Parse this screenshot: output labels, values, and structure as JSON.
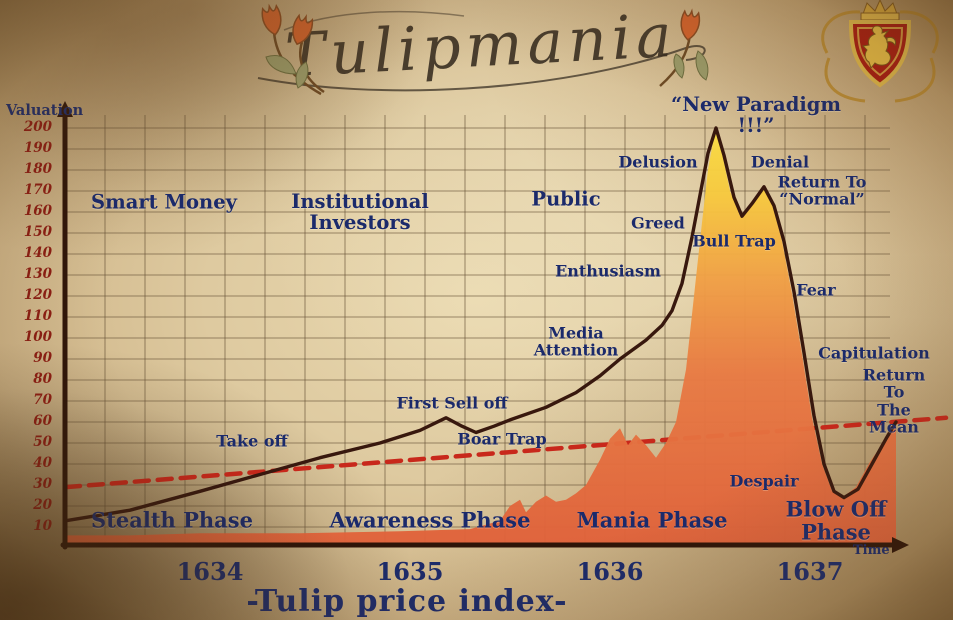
{
  "colors": {
    "navy": "#1b2a6b",
    "tick_maroon": "#8c1c12",
    "curve": "#38180e",
    "mean_line": "#c8281b",
    "axis": "#2e1408",
    "grid": "rgba(104,84,56,0.5)",
    "area_top": "#f9e044",
    "area_bottom": "#e0613a"
  },
  "chart_data": {
    "type": "area",
    "title": "Tulipmania",
    "caption": "-Tulip price index-",
    "xlabel": "Time",
    "ylabel": "Valuation",
    "ylim": [
      0,
      200
    ],
    "xlim": [
      1633.3,
      1637.7
    ],
    "grid": true,
    "legend": false,
    "y_ticks": [
      200,
      190,
      180,
      170,
      160,
      150,
      140,
      130,
      120,
      110,
      100,
      90,
      80,
      70,
      60,
      50,
      40,
      30,
      20,
      10
    ],
    "x_ticks": [
      1634,
      1635,
      1636,
      1637
    ],
    "series": [
      {
        "name": "tulip-price-index",
        "style": "area",
        "points": [
          [
            1633.28,
            6
          ],
          [
            1633.6,
            6
          ],
          [
            1633.95,
            7
          ],
          [
            1634.45,
            7
          ],
          [
            1634.95,
            8
          ],
          [
            1635.3,
            9
          ],
          [
            1635.45,
            13
          ],
          [
            1635.5,
            20
          ],
          [
            1635.55,
            23
          ],
          [
            1635.58,
            17
          ],
          [
            1635.63,
            22
          ],
          [
            1635.68,
            25
          ],
          [
            1635.73,
            22
          ],
          [
            1635.78,
            23
          ],
          [
            1635.83,
            26
          ],
          [
            1635.88,
            30
          ],
          [
            1635.95,
            42
          ],
          [
            1636.0,
            52
          ],
          [
            1636.05,
            57
          ],
          [
            1636.09,
            49
          ],
          [
            1636.13,
            54
          ],
          [
            1636.18,
            49
          ],
          [
            1636.23,
            43
          ],
          [
            1636.28,
            50
          ],
          [
            1636.33,
            60
          ],
          [
            1636.38,
            85
          ],
          [
            1636.42,
            120
          ],
          [
            1636.46,
            155
          ],
          [
            1636.49,
            180
          ],
          [
            1636.52,
            196
          ],
          [
            1636.535,
            200
          ],
          [
            1636.56,
            188
          ],
          [
            1636.6,
            170
          ],
          [
            1636.65,
            158
          ],
          [
            1636.7,
            163
          ],
          [
            1636.76,
            172
          ],
          [
            1636.81,
            164
          ],
          [
            1636.86,
            146
          ],
          [
            1636.91,
            121
          ],
          [
            1636.96,
            92
          ],
          [
            1637.01,
            62
          ],
          [
            1637.06,
            40
          ],
          [
            1637.11,
            27
          ],
          [
            1637.16,
            24
          ],
          [
            1637.23,
            29
          ],
          [
            1637.3,
            41
          ],
          [
            1637.38,
            52
          ],
          [
            1637.43,
            58
          ]
        ]
      },
      {
        "name": "bubble-phase-curve",
        "style": "line",
        "points": [
          [
            1633.28,
            13
          ],
          [
            1633.6,
            18
          ],
          [
            1633.95,
            27
          ],
          [
            1634.25,
            35
          ],
          [
            1634.55,
            43
          ],
          [
            1634.85,
            50
          ],
          [
            1635.05,
            56
          ],
          [
            1635.18,
            62
          ],
          [
            1635.26,
            58
          ],
          [
            1635.33,
            55
          ],
          [
            1635.42,
            58
          ],
          [
            1635.5,
            61
          ],
          [
            1635.68,
            67
          ],
          [
            1635.83,
            74
          ],
          [
            1635.95,
            82
          ],
          [
            1636.05,
            90
          ],
          [
            1636.18,
            99
          ],
          [
            1636.26,
            106
          ],
          [
            1636.31,
            113
          ],
          [
            1636.36,
            126
          ],
          [
            1636.41,
            148
          ],
          [
            1636.45,
            168
          ],
          [
            1636.49,
            188
          ],
          [
            1636.53,
            200
          ],
          [
            1636.57,
            187
          ],
          [
            1636.62,
            167
          ],
          [
            1636.66,
            158
          ],
          [
            1636.71,
            164
          ],
          [
            1636.77,
            172
          ],
          [
            1636.82,
            163
          ],
          [
            1636.87,
            146
          ],
          [
            1636.92,
            122
          ],
          [
            1636.97,
            93
          ],
          [
            1637.02,
            63
          ],
          [
            1637.07,
            40
          ],
          [
            1637.12,
            27
          ],
          [
            1637.17,
            24
          ],
          [
            1637.24,
            28
          ],
          [
            1637.31,
            40
          ],
          [
            1637.38,
            52
          ],
          [
            1637.43,
            60
          ]
        ]
      },
      {
        "name": "mean-trend",
        "style": "dashed",
        "points": [
          [
            1633.28,
            29
          ],
          [
            1637.68,
            62
          ]
        ]
      }
    ],
    "annotations": [
      {
        "name": "smart-money",
        "text": "Smart Money",
        "x": 1633.77,
        "y": 165,
        "size": "lg"
      },
      {
        "name": "institutional-investors",
        "text": "Institutional\nInvestors",
        "x": 1634.75,
        "y": 160,
        "size": "lg"
      },
      {
        "name": "public",
        "text": "Public",
        "x": 1635.78,
        "y": 166,
        "size": "lg"
      },
      {
        "name": "take-off",
        "text": "Take off",
        "x": 1634.21,
        "y": 51,
        "size": "md"
      },
      {
        "name": "first-sell-off",
        "text": "First Sell off",
        "x": 1635.21,
        "y": 69,
        "size": "md"
      },
      {
        "name": "boar-trap",
        "text": "Boar Trap",
        "x": 1635.46,
        "y": 52,
        "size": "md"
      },
      {
        "name": "media-attention",
        "text": "Media\nAttention",
        "x": 1635.83,
        "y": 98,
        "size": "md"
      },
      {
        "name": "enthusiasm",
        "text": "Enthusiasm",
        "x": 1635.99,
        "y": 132,
        "size": "md"
      },
      {
        "name": "greed",
        "text": "Greed",
        "x": 1636.24,
        "y": 155,
        "size": "md"
      },
      {
        "name": "delusion",
        "text": "Delusion",
        "x": 1636.24,
        "y": 184,
        "size": "md"
      },
      {
        "name": "new-paradigm",
        "text": "“New Paradigm !!!”",
        "x": 1636.73,
        "y": 206,
        "size": "lg"
      },
      {
        "name": "denial",
        "text": "Denial",
        "x": 1636.85,
        "y": 184,
        "size": "md"
      },
      {
        "name": "return-to-normal",
        "text": "Return To\n“Normal”",
        "x": 1637.06,
        "y": 170,
        "size": "md"
      },
      {
        "name": "bull-trap",
        "text": "Bull Trap",
        "x": 1636.62,
        "y": 146,
        "size": "md"
      },
      {
        "name": "fear",
        "text": "Fear",
        "x": 1637.03,
        "y": 123,
        "size": "md"
      },
      {
        "name": "capitulation",
        "text": "Capitulation",
        "x": 1637.32,
        "y": 93,
        "size": "md"
      },
      {
        "name": "return-to-the-mean",
        "text": "Return To\nThe Mean",
        "x": 1637.42,
        "y": 70,
        "size": "md"
      },
      {
        "name": "despair",
        "text": "Despair",
        "x": 1636.77,
        "y": 32,
        "size": "md"
      },
      {
        "name": "phase-stealth",
        "text": "Stealth Phase",
        "x": 1633.81,
        "y": 12.9,
        "size": "xl"
      },
      {
        "name": "phase-awareness",
        "text": "Awareness Phase",
        "x": 1635.1,
        "y": 12.9,
        "size": "xl"
      },
      {
        "name": "phase-mania",
        "text": "Mania Phase",
        "x": 1636.21,
        "y": 12.9,
        "size": "xl"
      },
      {
        "name": "phase-blow-off",
        "text": "Blow Off Phase",
        "x": 1637.13,
        "y": 12.9,
        "size": "xl"
      }
    ]
  }
}
